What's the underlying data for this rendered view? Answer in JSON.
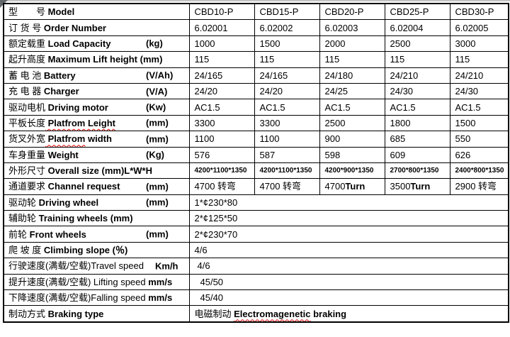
{
  "table": {
    "rows": [
      {
        "label": [
          {
            "t": "型　　号",
            "s": "cn"
          },
          {
            "t": " Model",
            "s": "en"
          }
        ],
        "cells": [
          "CBD10-P",
          "CBD15-P",
          "CBD20-P",
          "CBD25-P",
          "CBD30-P"
        ]
      },
      {
        "label": [
          {
            "t": "订 货 号",
            "s": "cn"
          },
          {
            "t": " Order Number",
            "s": "en"
          }
        ],
        "cells": [
          "6.02001",
          "6.02002",
          "6.02003",
          "6.02004",
          "6.02005"
        ]
      },
      {
        "label": [
          {
            "t": "额定载重",
            "s": "cn"
          },
          {
            "t": " Load Capacity",
            "s": "en"
          },
          {
            "t": "(kg)",
            "s": "en far"
          }
        ],
        "cells": [
          "1000",
          "1500",
          "2000",
          "2500",
          "3000"
        ]
      },
      {
        "label": [
          {
            "t": "起升高度",
            "s": "cn"
          },
          {
            "t": " Maximum Lift height (mm)",
            "s": "en"
          }
        ],
        "cells": [
          "115",
          "115",
          "115",
          "115",
          "115"
        ]
      },
      {
        "label": [
          {
            "t": "蓄 电 池",
            "s": "cn"
          },
          {
            "t": " Battery",
            "s": "en"
          },
          {
            "t": "(V/Ah)",
            "s": "en far"
          }
        ],
        "cells": [
          "24/165",
          "24/165",
          "24/180",
          "24/210",
          "24/210"
        ]
      },
      {
        "label": [
          {
            "t": "充 电 器",
            "s": "cn"
          },
          {
            "t": " Charger",
            "s": "en"
          },
          {
            "t": "(V/A)",
            "s": "en far"
          }
        ],
        "cells": [
          "24/20",
          "24/20",
          "24/25",
          "24/30",
          "24/30"
        ]
      },
      {
        "label": [
          {
            "t": "驱动电机",
            "s": "cn"
          },
          {
            "t": " Driving motor",
            "s": "en"
          },
          {
            "t": "(Kw)",
            "s": "en far"
          }
        ],
        "cells": [
          "AC1.5",
          "AC1.5",
          "AC1.5",
          "AC1.5",
          "AC1.5"
        ]
      },
      {
        "label": [
          {
            "t": "平板长度",
            "s": "cn"
          },
          {
            "t": " Platfrom Leight",
            "s": "wavy"
          },
          {
            "t": "(mm)",
            "s": "en far"
          }
        ],
        "cells": [
          "3300",
          "3300",
          "2500",
          "1800",
          "1500"
        ]
      },
      {
        "label": [
          {
            "t": "货叉外宽",
            "s": "cn"
          },
          {
            "t": " Platfrom",
            "s": "wavy"
          },
          {
            "t": " width",
            "s": "en"
          },
          {
            "t": "(mm)",
            "s": "en far"
          }
        ],
        "cells": [
          "1100",
          "1100",
          "900",
          "685",
          "550"
        ]
      },
      {
        "label": [
          {
            "t": "车身重量",
            "s": "cn"
          },
          {
            "t": " Weight",
            "s": "en"
          },
          {
            "t": "(Kg)",
            "s": "en far"
          }
        ],
        "cells": [
          "576",
          "587",
          "598",
          "609",
          "626"
        ]
      },
      {
        "small": true,
        "label": [
          {
            "t": "外形尺寸",
            "s": "cn"
          },
          {
            "t": " Overall size (mm)L*W*H",
            "s": "en"
          }
        ],
        "cells": [
          "4200*1100*1350",
          "4200*1100*1350",
          "4200*900*1350",
          "2700*800*1350",
          "2400*800*1350"
        ]
      },
      {
        "label": [
          {
            "t": "通道要求",
            "s": "cn"
          },
          {
            "t": " Channel request",
            "s": "en"
          },
          {
            "t": "(mm)",
            "s": "en far"
          }
        ],
        "cells": [
          [
            {
              "t": "4700 ",
              "s": "reg"
            },
            {
              "t": "转弯",
              "s": "cn"
            }
          ],
          [
            {
              "t": "4700 ",
              "s": "reg"
            },
            {
              "t": "转弯",
              "s": "cn"
            }
          ],
          [
            {
              "t": "4700",
              "s": "reg"
            },
            {
              "t": "Turn",
              "s": "en"
            }
          ],
          [
            {
              "t": "3500",
              "s": "reg"
            },
            {
              "t": "Turn",
              "s": "en"
            }
          ],
          [
            {
              "t": "2900 ",
              "s": "reg"
            },
            {
              "t": "转弯",
              "s": "cn"
            }
          ]
        ]
      },
      {
        "label": [
          {
            "t": "驱动轮",
            "s": "cn"
          },
          {
            "t": " Driving wheel",
            "s": "en"
          },
          {
            "t": "(mm)",
            "s": "en far"
          }
        ],
        "value": "1*¢230*80"
      },
      {
        "label": [
          {
            "t": "辅助轮",
            "s": "cn"
          },
          {
            "t": " Training wheels (mm)",
            "s": "en"
          }
        ],
        "value": "2*¢125*50"
      },
      {
        "label": [
          {
            "t": "前轮",
            "s": "cn"
          },
          {
            "t": " Front wheels",
            "s": "en"
          },
          {
            "t": "(mm)",
            "s": "en far"
          }
        ],
        "value": "2*¢230*70"
      },
      {
        "label": [
          {
            "t": "爬 坡 度",
            "s": "cn"
          },
          {
            "t": " Climbing slope (％)",
            "s": "en"
          }
        ],
        "value": "4/6"
      },
      {
        "label": [
          {
            "t": "行驶速度(满载/空载)",
            "s": "cn"
          },
          {
            "t": "Travel speed",
            "s": "reg"
          },
          {
            "t": "Km/h",
            "s": "en mid"
          }
        ],
        "value": "4/6",
        "indent": 1
      },
      {
        "label": [
          {
            "t": "提升速度(满载/空载)",
            "s": "cn"
          },
          {
            "t": " Lifting speed",
            "s": "reg"
          },
          {
            "t": " mm/s",
            "s": "en"
          }
        ],
        "value": "45/50",
        "indent": 2
      },
      {
        "label": [
          {
            "t": "下降速度(满载/空载)",
            "s": "cn"
          },
          {
            "t": "Falling speed",
            "s": "reg"
          },
          {
            "t": " mm/s",
            "s": "en"
          }
        ],
        "value": "45/40",
        "indent": 2
      },
      {
        "label": [
          {
            "t": "制动方式",
            "s": "cn"
          },
          {
            "t": " Braking type",
            "s": "en"
          }
        ],
        "value": [
          {
            "t": "电磁制动 ",
            "s": "cn"
          },
          {
            "t": "Electromagenetic",
            "s": "wavy"
          },
          {
            "t": " braking",
            "s": "en"
          }
        ]
      }
    ]
  },
  "colors": {
    "border": "#000000",
    "spellcheck_underline": "#e00000",
    "background": "#ffffff"
  }
}
